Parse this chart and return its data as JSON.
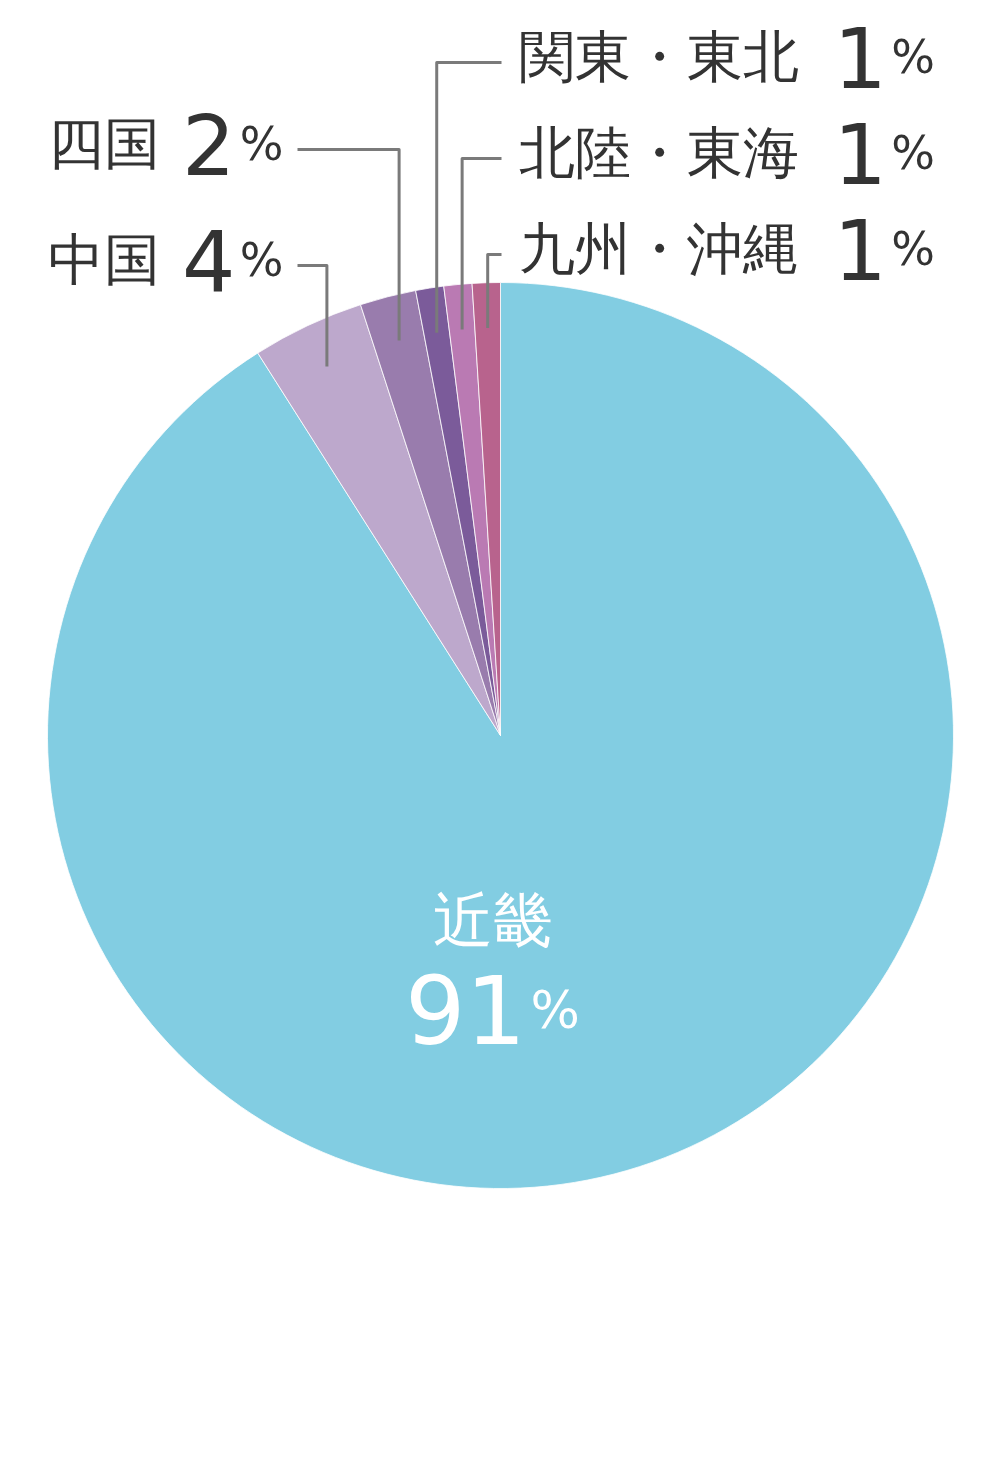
{
  "chart_data": {
    "type": "pie",
    "categories": [
      "近畿",
      "中国",
      "四国",
      "関東・東北",
      "北陸・東海",
      "九州・沖縄"
    ],
    "values": [
      91,
      4,
      2,
      1,
      1,
      1
    ],
    "colors": [
      "#82cde2",
      "#bda8cc",
      "#997cad",
      "#7b5b9a",
      "#ba7ab3",
      "#b8638d"
    ],
    "value_labels": [
      "91%",
      "4%",
      "2%",
      "1%",
      "1%",
      "1%"
    ]
  }
}
